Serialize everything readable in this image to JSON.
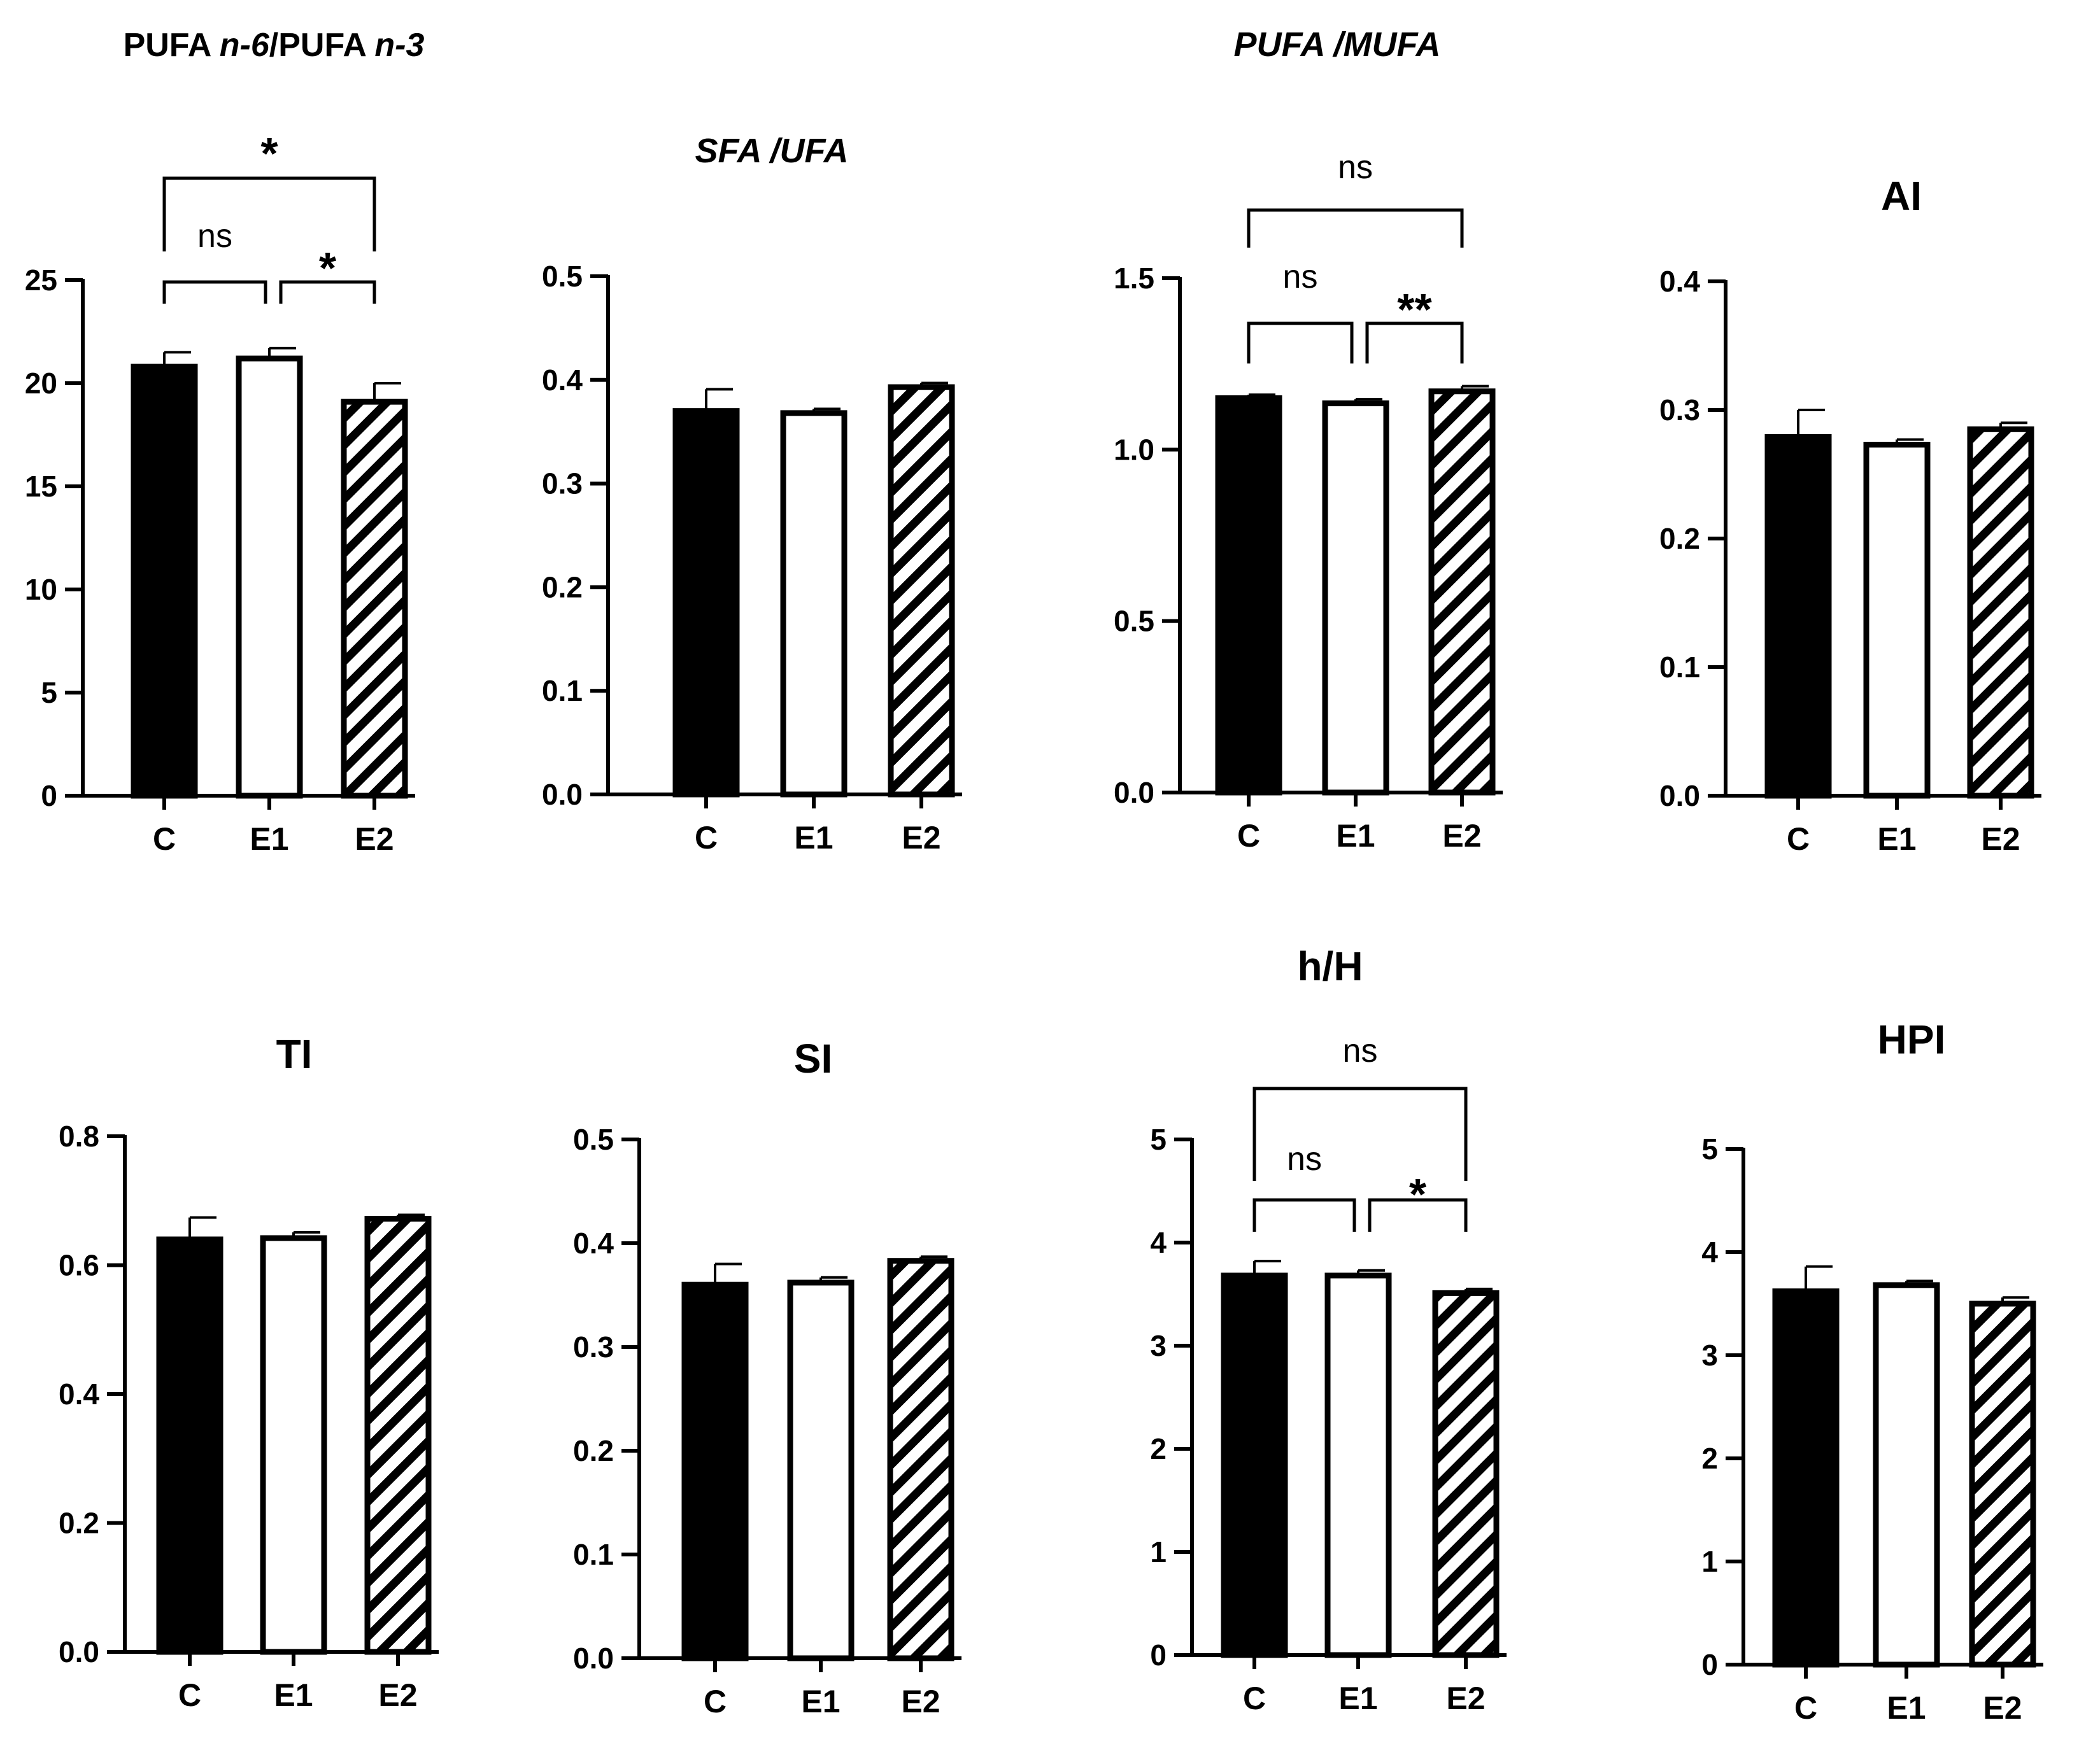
{
  "chart_data": [
    {
      "type": "bar",
      "title": "PUFA n-6/PUFA n-3",
      "title_parts": [
        {
          "text": "PUFA ",
          "italic": false
        },
        {
          "text": "n-6",
          "italic": true
        },
        {
          "text": "/PUFA ",
          "italic": false
        },
        {
          "text": "n-3",
          "italic": true
        }
      ],
      "categories": [
        "C",
        "E1",
        "E2"
      ],
      "values": [
        20.8,
        21.2,
        19.1
      ],
      "errors": [
        0.7,
        0.5,
        0.9
      ],
      "ylim": [
        0,
        25
      ],
      "yticks": [
        0,
        5,
        10,
        15,
        20,
        25
      ],
      "ytick_labels": [
        "0",
        "5",
        "10",
        "15",
        "20",
        "25"
      ],
      "significance": [
        {
          "from": 0,
          "to": 1,
          "label": "ns"
        },
        {
          "from": 1,
          "to": 2,
          "label": "*"
        },
        {
          "from": 0,
          "to": 2,
          "label": "*"
        }
      ]
    },
    {
      "type": "bar",
      "title": "SFA /UFA",
      "title_parts": [
        {
          "text": "SFA /UFA",
          "italic": true
        }
      ],
      "categories": [
        "C",
        "E1",
        "E2"
      ],
      "values": [
        0.37,
        0.368,
        0.393
      ],
      "errors": [
        0.021,
        0.004,
        0.004
      ],
      "ylim": [
        0,
        0.5
      ],
      "yticks": [
        0,
        0.1,
        0.2,
        0.3,
        0.4,
        0.5
      ],
      "ytick_labels": [
        "0.0",
        "0.1",
        "0.2",
        "0.3",
        "0.4",
        "0.5"
      ],
      "significance": []
    },
    {
      "type": "bar",
      "title": "PUFA /MUFA",
      "title_parts": [
        {
          "text": "PUFA /MUFA",
          "italic": true
        }
      ],
      "categories": [
        "C",
        "E1",
        "E2"
      ],
      "values": [
        1.15,
        1.135,
        1.17
      ],
      "errors": [
        0.01,
        0.012,
        0.015
      ],
      "ylim": [
        0,
        1.5
      ],
      "yticks": [
        0,
        0.5,
        1.0,
        1.5
      ],
      "ytick_labels": [
        "0.0",
        "0.5",
        "1.0",
        "1.5"
      ],
      "significance": [
        {
          "from": 0,
          "to": 1,
          "label": "ns"
        },
        {
          "from": 1,
          "to": 2,
          "label": "**"
        },
        {
          "from": 0,
          "to": 2,
          "label": "ns"
        }
      ]
    },
    {
      "type": "bar",
      "title": "AI",
      "title_parts": [
        {
          "text": "AI",
          "italic": false
        }
      ],
      "categories": [
        "C",
        "E1",
        "E2"
      ],
      "values": [
        0.279,
        0.273,
        0.285
      ],
      "errors": [
        0.021,
        0.004,
        0.005
      ],
      "ylim": [
        0,
        0.4
      ],
      "yticks": [
        0,
        0.1,
        0.2,
        0.3,
        0.4
      ],
      "ytick_labels": [
        "0.0",
        "0.1",
        "0.2",
        "0.3",
        "0.4"
      ],
      "significance": []
    },
    {
      "type": "bar",
      "title": "TI",
      "title_parts": [
        {
          "text": "TI",
          "italic": false
        }
      ],
      "categories": [
        "C",
        "E1",
        "E2"
      ],
      "values": [
        0.64,
        0.642,
        0.672
      ],
      "errors": [
        0.034,
        0.009,
        0.006
      ],
      "ylim": [
        0,
        0.8
      ],
      "yticks": [
        0,
        0.2,
        0.4,
        0.6,
        0.8
      ],
      "ytick_labels": [
        "0.0",
        "0.2",
        "0.4",
        "0.6",
        "0.8"
      ],
      "significance": []
    },
    {
      "type": "bar",
      "title": "SI",
      "title_parts": [
        {
          "text": "SI",
          "italic": false
        }
      ],
      "categories": [
        "C",
        "E1",
        "E2"
      ],
      "values": [
        0.36,
        0.362,
        0.383
      ],
      "errors": [
        0.02,
        0.005,
        0.004
      ],
      "ylim": [
        0,
        0.5
      ],
      "yticks": [
        0,
        0.1,
        0.2,
        0.3,
        0.4,
        0.5
      ],
      "ytick_labels": [
        "0.0",
        "0.1",
        "0.2",
        "0.3",
        "0.4",
        "0.5"
      ],
      "significance": []
    },
    {
      "type": "bar",
      "title": "h/H",
      "title_parts": [
        {
          "text": "h/H",
          "italic": false
        }
      ],
      "categories": [
        "C",
        "E1",
        "E2"
      ],
      "values": [
        3.68,
        3.68,
        3.51
      ],
      "errors": [
        0.14,
        0.05,
        0.04
      ],
      "ylim": [
        0,
        5
      ],
      "yticks": [
        0,
        1,
        2,
        3,
        4,
        5
      ],
      "ytick_labels": [
        "0",
        "1",
        "2",
        "3",
        "4",
        "5"
      ],
      "significance": [
        {
          "from": 0,
          "to": 1,
          "label": "ns"
        },
        {
          "from": 1,
          "to": 2,
          "label": "*"
        },
        {
          "from": 0,
          "to": 2,
          "label": "ns"
        }
      ]
    },
    {
      "type": "bar",
      "title": "HPI",
      "title_parts": [
        {
          "text": "HPI",
          "italic": false
        }
      ],
      "categories": [
        "C",
        "E1",
        "E2"
      ],
      "values": [
        3.62,
        3.68,
        3.5
      ],
      "errors": [
        0.24,
        0.04,
        0.06
      ],
      "ylim": [
        0,
        5
      ],
      "yticks": [
        0,
        1,
        2,
        3,
        4,
        5
      ],
      "ytick_labels": [
        "0",
        "1",
        "2",
        "3",
        "4",
        "5"
      ],
      "significance": []
    }
  ],
  "styles": {
    "bar_fills": [
      "solid-black",
      "white",
      "diagonal-hatch"
    ],
    "ink_color": "#000000",
    "background": "#ffffff"
  }
}
